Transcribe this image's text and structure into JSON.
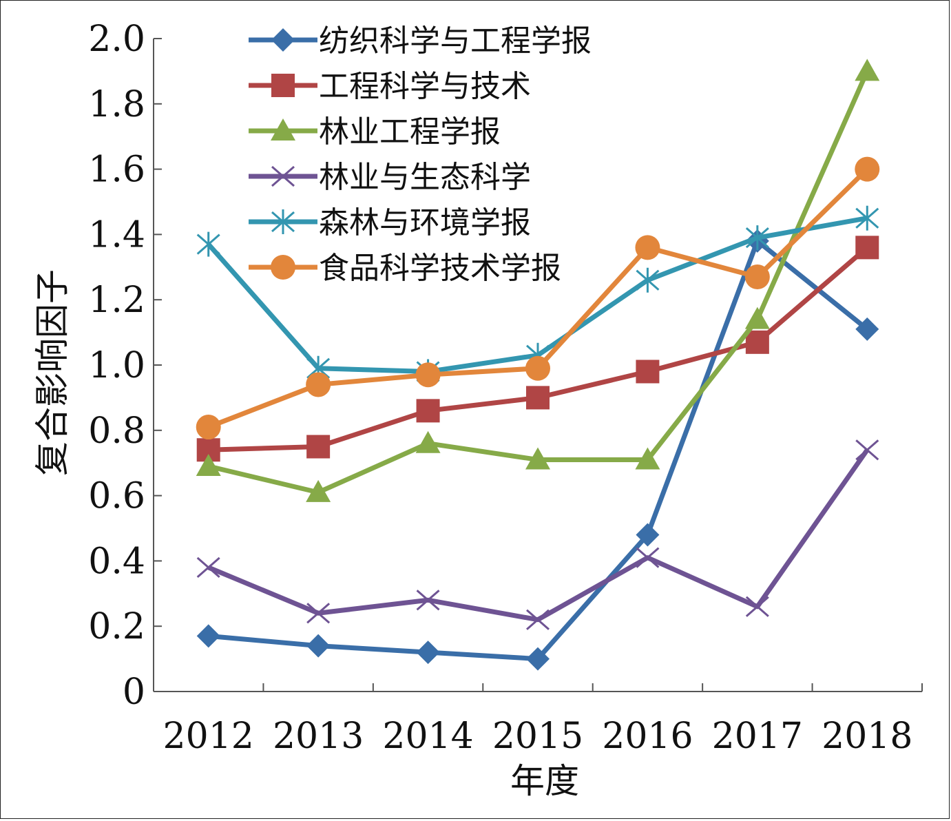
{
  "chart_data": {
    "type": "line",
    "xlabel": "年度",
    "ylabel": "复合影响因子",
    "categories": [
      "2012",
      "2013",
      "2014",
      "2015",
      "2016",
      "2017",
      "2018"
    ],
    "ylim": [
      0,
      2.0
    ],
    "yticks": [
      "0",
      "0.2",
      "0.4",
      "0.6",
      "0.8",
      "1.0",
      "1.2",
      "1.4",
      "1.6",
      "1.8",
      "2.0"
    ],
    "grid": false,
    "legend_position": "top-left",
    "series": [
      {
        "name": "纺织科学与工程学报",
        "color": "#3a6ea8",
        "marker": "diamond",
        "values": [
          0.17,
          0.14,
          0.12,
          0.1,
          0.48,
          1.38,
          1.11
        ]
      },
      {
        "name": "工程科学与技术",
        "color": "#b04545",
        "marker": "square",
        "values": [
          0.74,
          0.75,
          0.86,
          0.9,
          0.98,
          1.07,
          1.36
        ]
      },
      {
        "name": "林业工程学报",
        "color": "#86aa48",
        "marker": "triangle",
        "values": [
          0.69,
          0.61,
          0.76,
          0.71,
          0.71,
          1.14,
          1.9
        ]
      },
      {
        "name": "林业与生态科学",
        "color": "#6e5393",
        "marker": "x",
        "values": [
          0.38,
          0.24,
          0.28,
          0.22,
          0.41,
          0.26,
          0.74
        ]
      },
      {
        "name": "森林与环境学报",
        "color": "#3396b0",
        "marker": "star",
        "values": [
          1.37,
          0.99,
          0.98,
          1.03,
          1.26,
          1.39,
          1.45
        ]
      },
      {
        "name": "食品科学技术学报",
        "color": "#e2863b",
        "marker": "circle",
        "values": [
          0.81,
          0.94,
          0.97,
          0.99,
          1.36,
          1.27,
          1.6
        ]
      }
    ]
  }
}
